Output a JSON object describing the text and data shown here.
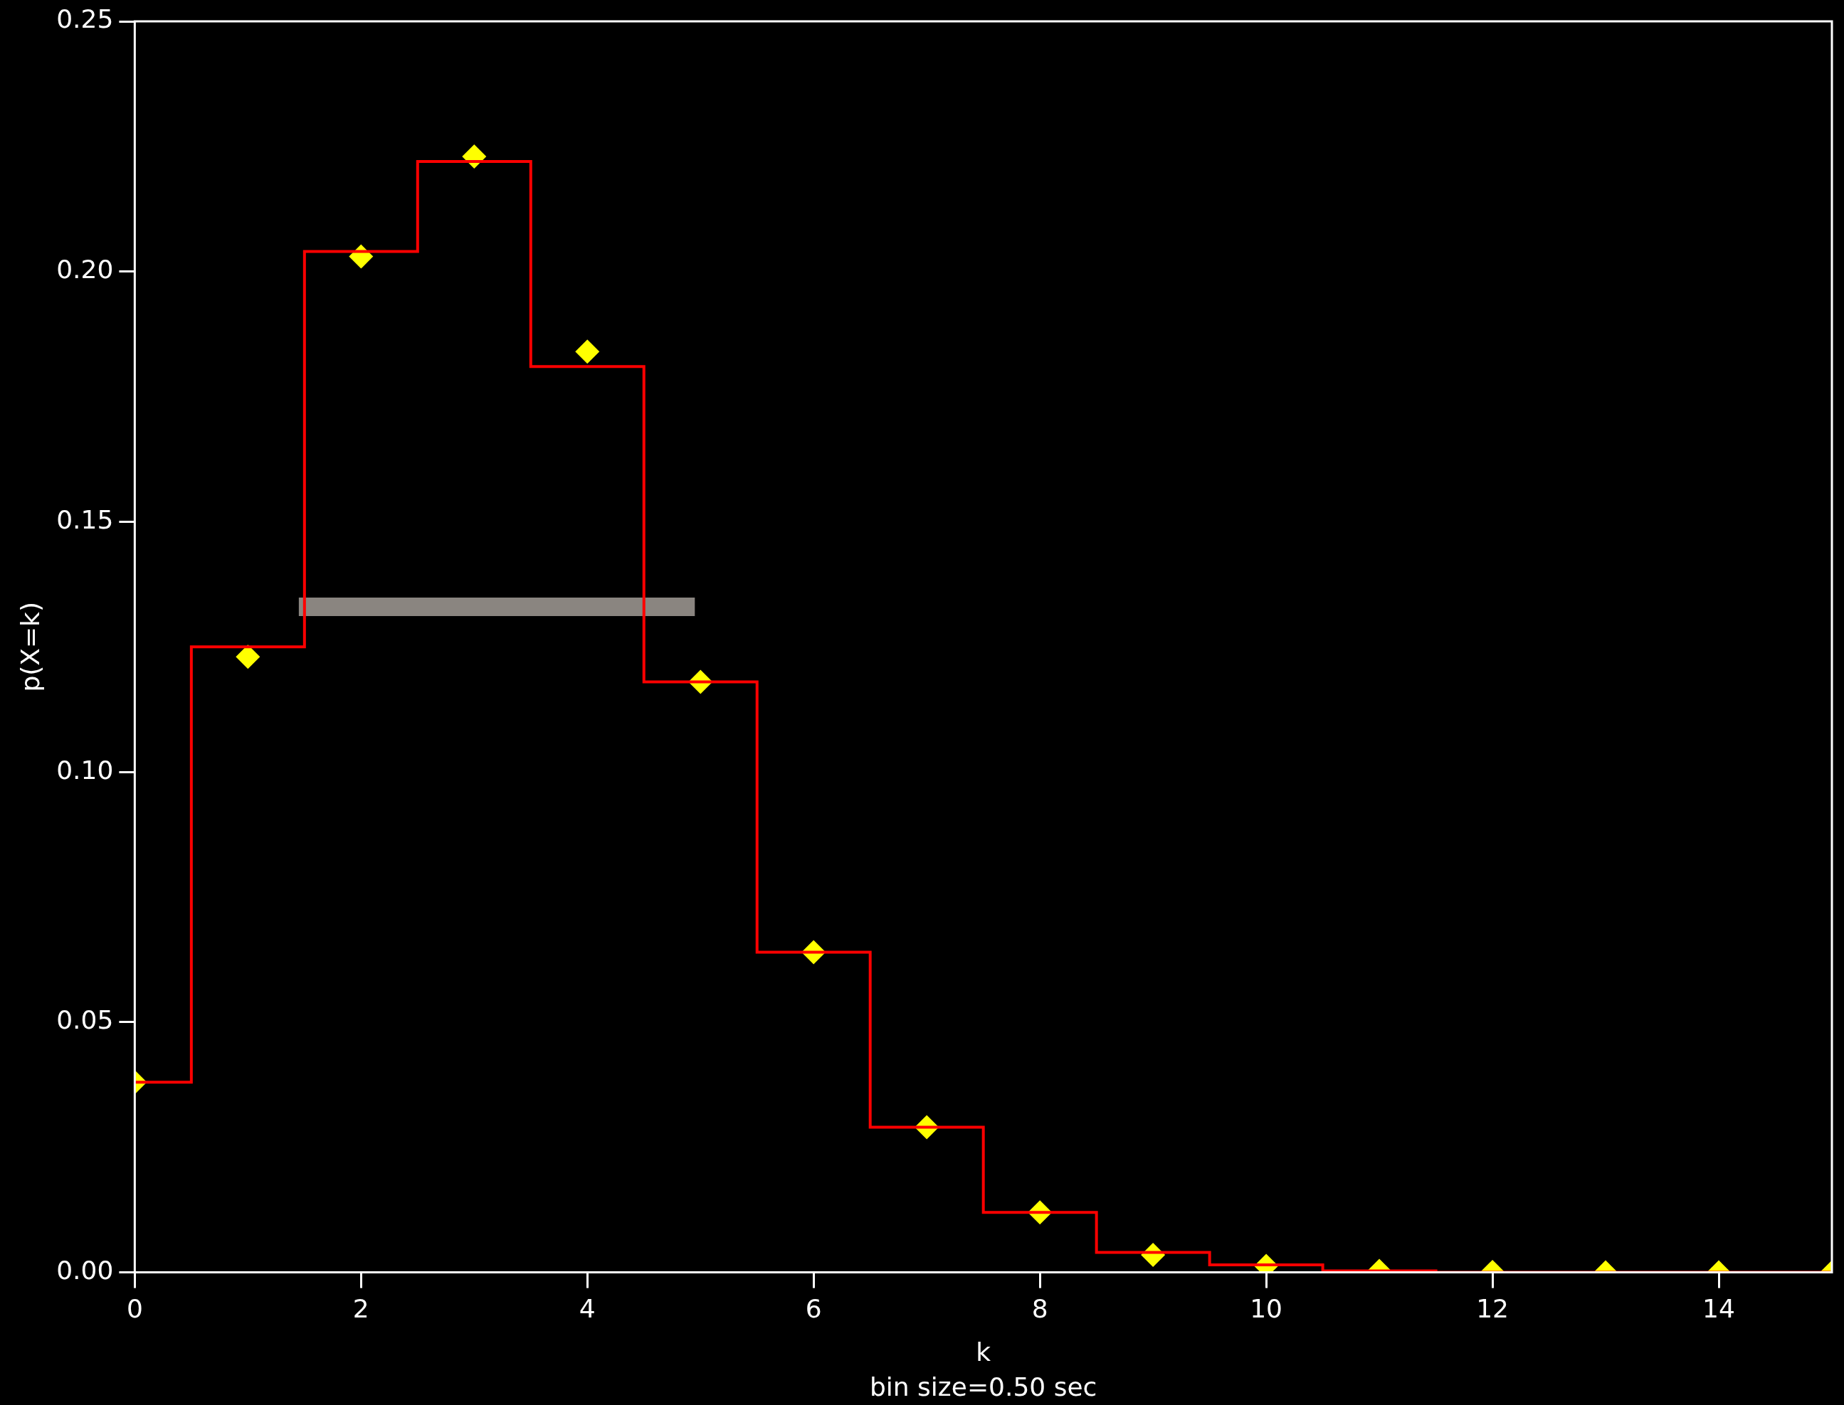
{
  "chart_data": {
    "type": "step",
    "xlabel": "k",
    "ylabel": "p(X=k)",
    "annotations": [
      "bin size=0.50 sec"
    ],
    "xlim": [
      0,
      15
    ],
    "ylim": [
      0,
      0.25
    ],
    "xticks": [
      0,
      2,
      4,
      6,
      8,
      10,
      12,
      14
    ],
    "yticks": [
      {
        "value": 0,
        "label": "0.00"
      },
      0.05,
      {
        "value": 0.1,
        "label": "0.10"
      },
      0.15,
      {
        "value": 0.2,
        "label": "0.20"
      },
      0.25
    ],
    "grid": false,
    "legend": false,
    "series": [
      {
        "color": "#ff0000",
        "marker": "none",
        "x": [
          0,
          1,
          2,
          3,
          4,
          5,
          6,
          7,
          8,
          9,
          10,
          11,
          12,
          13,
          14,
          15
        ],
        "values": [
          0.038,
          0.125,
          0.204,
          0.222,
          0.181,
          0.118,
          0.064,
          0.029,
          0.012,
          0.004,
          0.0015,
          0.0003,
          0,
          0,
          0,
          0
        ]
      },
      {
        "type": "scatter",
        "color": "#ffff00",
        "marker": "diamond",
        "x": [
          0,
          1,
          2,
          3,
          4,
          5,
          6,
          7,
          8,
          9,
          10,
          11,
          12,
          13,
          14,
          15
        ],
        "values": [
          0.038,
          0.123,
          0.203,
          0.223,
          0.184,
          0.118,
          0.064,
          0.029,
          0.012,
          0.0035,
          0.0013,
          0.0003,
          0.0001,
          0,
          0,
          0
        ]
      },
      {
        "type": "line",
        "color": "#8a8580",
        "marker": "none",
        "x": [
          1.45,
          4.95
        ],
        "values": [
          0.133,
          0.133
        ]
      }
    ]
  }
}
